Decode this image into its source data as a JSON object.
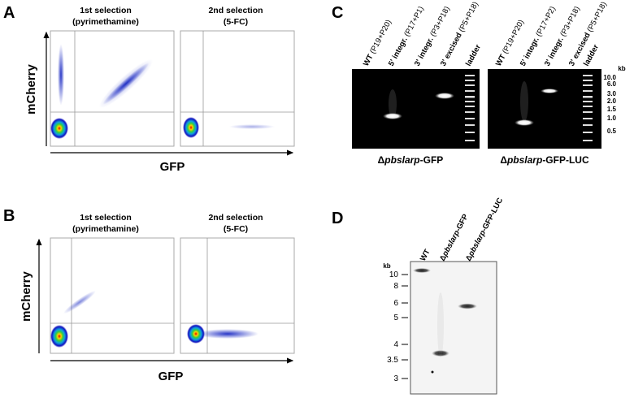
{
  "panels": {
    "A": {
      "label": "A",
      "plots": [
        {
          "title": "1st selection",
          "subtitle": "(pyrimethamine)"
        },
        {
          "title": "2nd selection",
          "subtitle": "(5-FC)"
        }
      ],
      "y_label": "mCherry",
      "x_label": "GFP"
    },
    "B": {
      "label": "B",
      "plots": [
        {
          "title": "1st selection",
          "subtitle": "(pyrimethamine)"
        },
        {
          "title": "2nd selection",
          "subtitle": "(5-FC)"
        }
      ],
      "y_label": "mCherry",
      "x_label": "GFP"
    },
    "C": {
      "label": "C",
      "gels": [
        {
          "lanes": [
            {
              "name": "WT",
              "primers": "(P19+P20)"
            },
            {
              "name": "5' integr.",
              "primers": "(P17+P1)"
            },
            {
              "name": "3' integr.",
              "primers": "(P3+P18)"
            },
            {
              "name": "3' excised",
              "primers": "(P5+P18)"
            },
            {
              "name": "ladder"
            }
          ],
          "caption": {
            "prefix": "Δ",
            "italic": "pbslarp",
            "suffix": "-GFP"
          }
        },
        {
          "lanes": [
            {
              "name": "WT",
              "primers": "(P19+P20)"
            },
            {
              "name": "5' integr.",
              "primers": "(P17+P2)"
            },
            {
              "name": "3' integr.",
              "primers": "(P3+P18)"
            },
            {
              "name": "3' excised",
              "primers": "(P5+P18)"
            },
            {
              "name": "ladder"
            }
          ],
          "caption": {
            "prefix": "Δ",
            "italic": "pbslarp",
            "suffix": "-GFP-LUC"
          }
        }
      ],
      "size_unit": "kb",
      "sizes": [
        "10.0",
        "6.0",
        "3.0",
        "2.0",
        "1.5",
        "1.0",
        "0.5"
      ]
    },
    "D": {
      "label": "D",
      "lanes": [
        {
          "name": "WT"
        },
        {
          "prefix": "Δ",
          "italic": "pbslarp",
          "suffix": "-GFP"
        },
        {
          "prefix": "Δ",
          "italic": "pbslarp",
          "suffix": "-GFP-LUC"
        }
      ],
      "size_unit": "kb",
      "sizes": [
        "10",
        "8",
        "6",
        "5",
        "4",
        "3.5",
        "3"
      ]
    }
  }
}
